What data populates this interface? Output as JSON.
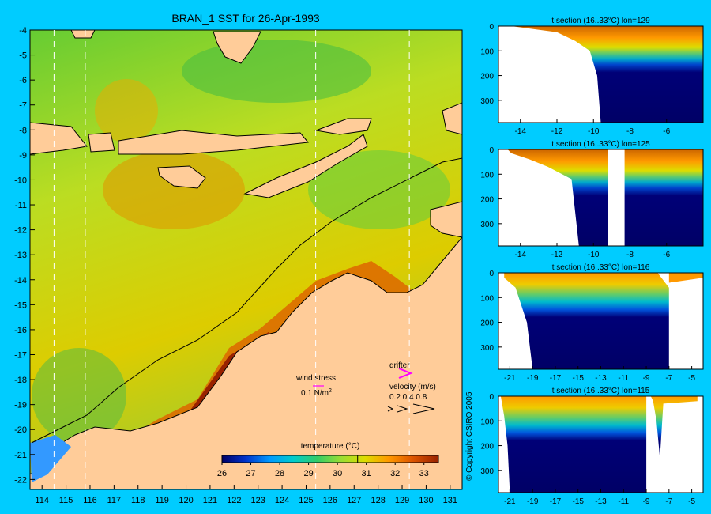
{
  "chart_data": [
    {
      "type": "heatmap",
      "title": "BRAN_1 SST for 26-Apr-1993",
      "xlim": [
        113.5,
        131.5
      ],
      "ylim": [
        -22.4,
        -4
      ],
      "x_ticks": [
        "114",
        "115",
        "116",
        "117",
        "118",
        "119",
        "120",
        "121",
        "122",
        "123",
        "124",
        "125",
        "126",
        "127",
        "128",
        "129",
        "130",
        "131"
      ],
      "y_ticks": [
        "-4",
        "-5",
        "-6",
        "-7",
        "-8",
        "-9",
        "-10",
        "-11",
        "-12",
        "-13",
        "-14",
        "-15",
        "-16",
        "-17",
        "-18",
        "-19",
        "-20",
        "-21",
        "-22"
      ],
      "section_lines_lon": [
        114.5,
        115.8,
        125.4,
        129.3
      ],
      "colorbar": {
        "label": "temperature (°C)",
        "min": 26,
        "max": 33.5,
        "marker": 30.7,
        "ticks": [
          "26",
          "27",
          "28",
          "29",
          "30",
          "31",
          "32",
          "33"
        ],
        "colors": [
          "#000066",
          "#0033cc",
          "#0099ff",
          "#00cccc",
          "#33cc66",
          "#99dd33",
          "#dddd00",
          "#ff9900",
          "#dd5500",
          "#992200"
        ]
      },
      "legend": {
        "wind_label": "wind stress",
        "wind_value": "0.1 N/m",
        "wind_exp": "2",
        "drifter_label": "drifter",
        "velocity_label": "velocity (m/s)",
        "velocity_values": "0.2 0.4 0.8"
      },
      "colors": {
        "land": "#ffcc99",
        "drifter": "#ff00ff",
        "wind": "#ff00ff",
        "background": "#00ccff"
      }
    },
    {
      "type": "heatmap",
      "title": "t section (16..33°C) lon=129",
      "xlim": [
        -15.2,
        -4
      ],
      "ylim": [
        0,
        390
      ],
      "x_ticks": [
        "-14",
        "-12",
        "-10",
        "-8",
        "-6"
      ],
      "y_ticks": [
        "0",
        "100",
        "200",
        "300"
      ]
    },
    {
      "type": "heatmap",
      "title": "t section (16..33°C) lon=125",
      "xlim": [
        -15.2,
        -4
      ],
      "ylim": [
        0,
        390
      ],
      "x_ticks": [
        "-14",
        "-12",
        "-10",
        "-8",
        "-6"
      ],
      "y_ticks": [
        "0",
        "100",
        "200",
        "300"
      ]
    },
    {
      "type": "heatmap",
      "title": "t section (16..33°C) lon=116",
      "xlim": [
        -22,
        -4
      ],
      "ylim": [
        0,
        390
      ],
      "x_ticks": [
        "-21",
        "-19",
        "-17",
        "-15",
        "-13",
        "-11",
        "-9",
        "-7",
        "-5"
      ],
      "y_ticks": [
        "0",
        "100",
        "200",
        "300"
      ]
    },
    {
      "type": "heatmap",
      "title": "t section (16..33°C) lon=115",
      "xlim": [
        -22,
        -4
      ],
      "ylim": [
        0,
        390
      ],
      "x_ticks": [
        "-21",
        "-19",
        "-17",
        "-15",
        "-13",
        "-11",
        "-9",
        "-7",
        "-5"
      ],
      "y_ticks": [
        "0",
        "100",
        "200",
        "300"
      ]
    }
  ],
  "copyright": "© Copyright CSIRO 2005"
}
